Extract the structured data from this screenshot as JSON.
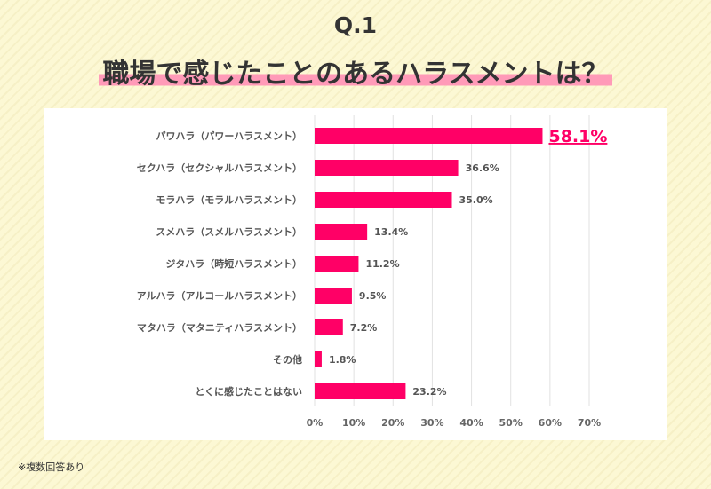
{
  "header": {
    "question": "Q.1",
    "title": "職場で感じたことのあるハラスメントは？"
  },
  "footnote": "※複数回答あり",
  "colors": {
    "bar": "#ff0066",
    "highlight_label": "#ff0066",
    "title_underline": "#ff9ab8",
    "background": "#fcf8d4"
  },
  "chart_data": {
    "type": "bar",
    "orientation": "horizontal",
    "title": "",
    "categories": [
      "パワハラ（パワーハラスメント）",
      "セクハラ（セクシャルハラスメント）",
      "モラハラ（モラルハラスメント）",
      "スメハラ（スメルハラスメント）",
      "ジタハラ（時短ハラスメント）",
      "アルハラ（アルコールハラスメント）",
      "マタハラ（マタニティハラスメント）",
      "その他",
      "とくに感じたことはない"
    ],
    "values": [
      58.1,
      36.6,
      35.0,
      13.4,
      11.2,
      9.5,
      7.2,
      1.8,
      23.2
    ],
    "value_labels": [
      "58.1%",
      "36.6%",
      "35.0%",
      "13.4%",
      "11.2%",
      "9.5%",
      "7.2%",
      "1.8%",
      "23.2%"
    ],
    "highlighted_index": 0,
    "xlim": [
      0,
      70
    ],
    "x_ticks": [
      "0%",
      "10%",
      "20%",
      "30%",
      "40%",
      "50%",
      "60%",
      "70%"
    ],
    "grid": true,
    "unit": "%"
  }
}
